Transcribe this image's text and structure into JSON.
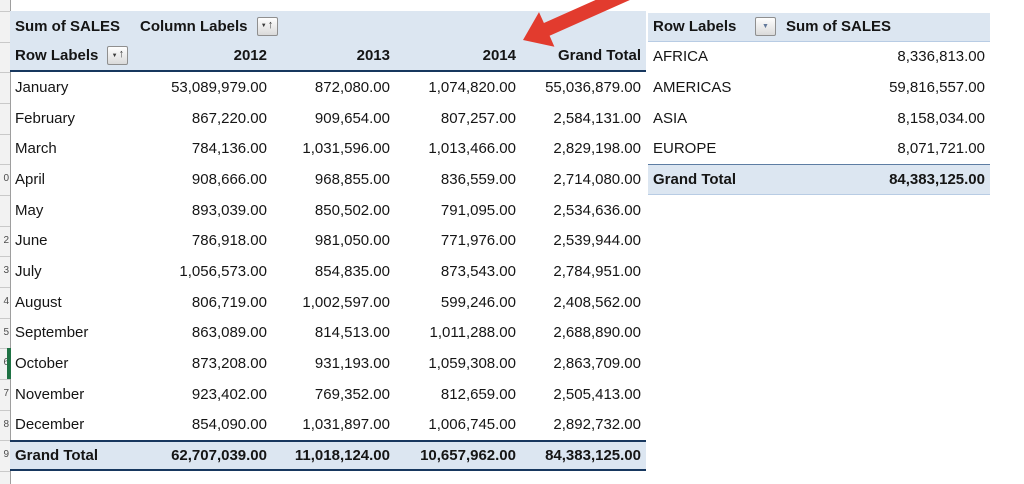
{
  "colors": {
    "header_band": "#dce6f1",
    "navy_border": "#17375e",
    "light_border": "#b8cce4",
    "arrow_red": "#e23b2e",
    "selection_green": "#1f7244",
    "strip_bg": "#f2f2f2"
  },
  "pivot_left": {
    "corner_label": "Sum of SALES",
    "column_labels_label": "Column Labels",
    "row_labels_label": "Row Labels",
    "columns": [
      "2012",
      "2013",
      "2014",
      "Grand Total"
    ],
    "rows": [
      {
        "label": "January",
        "v2012": "53,089,979.00",
        "v2013": "872,080.00",
        "v2014": "1,074,820.00",
        "total": "55,036,879.00"
      },
      {
        "label": "February",
        "v2012": "867,220.00",
        "v2013": "909,654.00",
        "v2014": "807,257.00",
        "total": "2,584,131.00"
      },
      {
        "label": "March",
        "v2012": "784,136.00",
        "v2013": "1,031,596.00",
        "v2014": "1,013,466.00",
        "total": "2,829,198.00"
      },
      {
        "label": "April",
        "v2012": "908,666.00",
        "v2013": "968,855.00",
        "v2014": "836,559.00",
        "total": "2,714,080.00"
      },
      {
        "label": "May",
        "v2012": "893,039.00",
        "v2013": "850,502.00",
        "v2014": "791,095.00",
        "total": "2,534,636.00"
      },
      {
        "label": "June",
        "v2012": "786,918.00",
        "v2013": "981,050.00",
        "v2014": "771,976.00",
        "total": "2,539,944.00"
      },
      {
        "label": "July",
        "v2012": "1,056,573.00",
        "v2013": "854,835.00",
        "v2014": "873,543.00",
        "total": "2,784,951.00"
      },
      {
        "label": "August",
        "v2012": "806,719.00",
        "v2013": "1,002,597.00",
        "v2014": "599,246.00",
        "total": "2,408,562.00"
      },
      {
        "label": "September",
        "v2012": "863,089.00",
        "v2013": "814,513.00",
        "v2014": "1,011,288.00",
        "total": "2,688,890.00"
      },
      {
        "label": "October",
        "v2012": "873,208.00",
        "v2013": "931,193.00",
        "v2014": "1,059,308.00",
        "total": "2,863,709.00"
      },
      {
        "label": "November",
        "v2012": "923,402.00",
        "v2013": "769,352.00",
        "v2014": "812,659.00",
        "total": "2,505,413.00"
      },
      {
        "label": "December",
        "v2012": "854,090.00",
        "v2013": "1,031,897.00",
        "v2014": "1,006,745.00",
        "total": "2,892,732.00"
      }
    ],
    "grand_total": {
      "label": "Grand Total",
      "v2012": "62,707,039.00",
      "v2013": "11,018,124.00",
      "v2014": "10,657,962.00",
      "total": "84,383,125.00"
    }
  },
  "pivot_right": {
    "row_labels_label": "Row Labels",
    "values_label": "Sum of SALES",
    "rows": [
      {
        "label": "AFRICA",
        "value": "8,336,813.00"
      },
      {
        "label": "AMERICAS",
        "value": "59,816,557.00"
      },
      {
        "label": "ASIA",
        "value": "8,158,034.00"
      },
      {
        "label": "EUROPE",
        "value": "8,071,721.00"
      }
    ],
    "grand_total": {
      "label": "Grand Total",
      "value": "84,383,125.00"
    }
  },
  "row_strip": {
    "fragments": [
      {
        "row": 5,
        "digit": "0"
      },
      {
        "row": 7,
        "digit": "2"
      },
      {
        "row": 8,
        "digit": "3"
      },
      {
        "row": 9,
        "digit": "4"
      },
      {
        "row": 10,
        "digit": "5"
      },
      {
        "row": 11,
        "digit": "6"
      },
      {
        "row": 12,
        "digit": "7"
      },
      {
        "row": 13,
        "digit": "8"
      },
      {
        "row": 14,
        "digit": "9"
      }
    ]
  },
  "annotation": {
    "shape": "arrow",
    "target": "2014 column header"
  },
  "icons": {
    "sort_asc": "↑",
    "dropdown": "▼"
  }
}
